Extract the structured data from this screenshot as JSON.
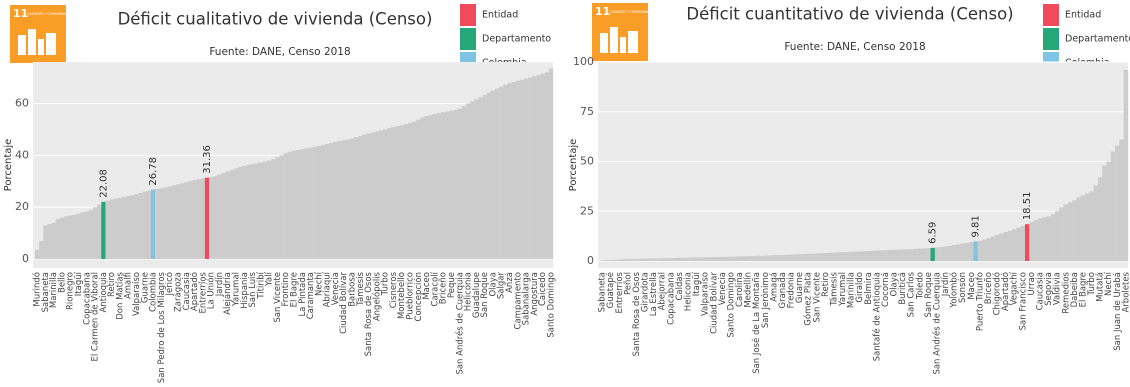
{
  "chart_data": [
    {
      "type": "bar",
      "title": "Déficit cualitativo de vivienda (Censo)",
      "subtitle": "Fuente: DANE, Censo 2018",
      "y_label": "Porcentaje",
      "logo": {
        "number": "11",
        "text": "CIUDADES Y COMUNIDADES SOSTENIBLES",
        "color": "#f99d26"
      },
      "color": "#cccccc",
      "background": "#ebebeb",
      "grid": true,
      "ylim": [
        0,
        76
      ],
      "yticks": [
        0,
        20,
        40,
        60
      ],
      "legend": [
        {
          "name": "Entidad",
          "color": "#ef4b5c",
          "index": 41
        },
        {
          "name": "Departamento",
          "color": "#26a77a",
          "index": 16
        },
        {
          "name": "Colombia",
          "color": "#7fc4e2",
          "index": 28
        }
      ],
      "categories": [
        "Murindó",
        null,
        "Sabaneta",
        null,
        "Marinilla",
        null,
        "Bello",
        null,
        "Rionegro",
        null,
        "Itagüí",
        null,
        "Copacabana",
        null,
        "El Carmen de Viboral",
        null,
        "Antioquia",
        null,
        "Retiro",
        null,
        "Don Matías",
        null,
        "Amalfi",
        null,
        "Valparaíso",
        null,
        "Guarne",
        null,
        "Colombia",
        null,
        "San Pedro de Los Milagros",
        null,
        "Jericó",
        null,
        "Zaragoza",
        null,
        "Caucasia",
        null,
        "Apartadó",
        null,
        "Entrerríos",
        null,
        "La Unión",
        null,
        "Jardín",
        null,
        "Alejandría",
        null,
        "Yarumal",
        null,
        "Hispania",
        null,
        "San Luis",
        null,
        "Titiribí",
        null,
        "Yalí",
        null,
        "San Vicente",
        null,
        "Frontino",
        null,
        "El Bagre",
        null,
        "La Pintada",
        null,
        "Caramanta",
        null,
        "Nechí",
        null,
        "Abriaquí",
        null,
        "Venecia",
        null,
        "Ciudad Bolívar",
        null,
        "Barbosa",
        null,
        "Támesis",
        null,
        "Santa Rosa de Osos",
        null,
        "Angelópolis",
        null,
        "Turbo",
        null,
        "Cisneros",
        null,
        "Montebello",
        null,
        "Pueblorrico",
        null,
        "Concepción",
        null,
        "Maceo",
        null,
        "Caracolí",
        null,
        "Briceño",
        null,
        "Peque",
        null,
        "San Andrés de Cuerquia",
        null,
        "Heliconia",
        null,
        "Guadalupe",
        null,
        "San Roque",
        null,
        "Olaya",
        null,
        "Salgar",
        null,
        "Anzá",
        null,
        "Campamento",
        null,
        "Sabanalarga",
        null,
        "Angostura",
        null,
        "Caicedo",
        null,
        "Santo Domingo"
      ],
      "values": [
        3.5,
        7,
        13,
        13.5,
        14,
        15.5,
        16,
        16.5,
        16.8,
        17,
        17.5,
        18,
        18.3,
        19,
        20,
        21,
        22.08,
        22.5,
        23,
        23.3,
        23.7,
        24,
        24.3,
        24.6,
        25,
        25.5,
        26,
        26.4,
        26.78,
        27,
        27.3,
        27.6,
        28,
        28.4,
        28.8,
        29.2,
        29.6,
        30,
        30.4,
        30.8,
        31.1,
        31.36,
        31.6,
        32,
        32.6,
        33.2,
        33.8,
        34.4,
        35,
        35.5,
        36,
        36.3,
        36.6,
        36.9,
        37.2,
        37.6,
        38,
        38.6,
        39.3,
        40,
        40.8,
        41.4,
        41.8,
        42.1,
        42.4,
        42.7,
        43,
        43.3,
        43.6,
        44,
        44.4,
        44.8,
        45.2,
        45.5,
        45.8,
        46.1,
        46.5,
        47,
        47.5,
        48,
        48.4,
        48.8,
        49.2,
        49.6,
        50,
        50.5,
        51,
        51.3,
        51.6,
        52,
        52.5,
        53,
        53.8,
        54.6,
        55.2,
        55.6,
        56,
        56.3,
        56.6,
        56.9,
        57.2,
        57.5,
        58,
        59,
        60,
        60.8,
        61.6,
        62.4,
        63.3,
        64.2,
        65,
        65.8,
        66.5,
        67.2,
        67.8,
        68.3,
        68.8,
        69.2,
        69.6,
        70,
        70.5,
        71,
        71.5,
        72,
        73.5
      ]
    },
    {
      "type": "bar",
      "title": "Déficit cuantitativo de vivienda (Censo)",
      "subtitle": "Fuente: DANE, Censo 2018",
      "y_label": "Porcentaje",
      "logo": {
        "number": "11",
        "text": "CIUDADES Y COMUNIDADES SOSTENIBLES",
        "color": "#f99d26"
      },
      "color": "#cccccc",
      "background": "#ebebeb",
      "grid": true,
      "ylim": [
        0,
        100
      ],
      "yticks": [
        0,
        25,
        50,
        75,
        100
      ],
      "legend": [
        {
          "name": "Entidad",
          "color": "#ef4b5c",
          "index": 99
        },
        {
          "name": "Departamento",
          "color": "#26a77a",
          "index": 77
        },
        {
          "name": "Colombia",
          "color": "#7fc4e2",
          "index": 87
        }
      ],
      "categories": [
        "Sabaneta",
        null,
        "Guatapé",
        null,
        "Entrerríos",
        null,
        "Peñol",
        null,
        "Santa Rosa de Osos",
        null,
        "Girardota",
        null,
        "La Estrella",
        null,
        "Abejorral",
        null,
        "Copacabana",
        null,
        "Caldas",
        null,
        "Heliconia",
        null,
        "Itagüí",
        null,
        "Valparaíso",
        null,
        "Ciudad Bolívar",
        null,
        "Venecia",
        null,
        "Santo Domingo",
        null,
        "Carolina",
        null,
        "Medellín",
        null,
        "San José de La Montaña",
        null,
        "San Jerónimo",
        null,
        "Amagá",
        null,
        "Granada",
        null,
        "Fredonia",
        null,
        "Guarne",
        null,
        "Gómez Plata",
        null,
        "San Vicente",
        null,
        "Retiro",
        null,
        "Támesis",
        null,
        "Yarumal",
        null,
        "Marinilla",
        null,
        "Giraldo",
        null,
        "Belmira",
        null,
        "Santafé de Antioquia",
        null,
        "Cocorná",
        null,
        "Olaya",
        null,
        "Buriticá",
        null,
        "San Carlos",
        null,
        "Toledo",
        null,
        "San Roque",
        null,
        "San Andrés de Cuerquia",
        null,
        "Jardín",
        null,
        "Yolombó",
        null,
        "Sonsón",
        null,
        "Maceo",
        null,
        "Puerto Triunfo",
        null,
        "Briceño",
        null,
        "Chigorodó",
        null,
        "Apartadó",
        null,
        "Vegachí",
        null,
        "San Francisco",
        null,
        "Urrao",
        null,
        "Caucasia",
        null,
        "Segovia",
        null,
        "Valdivia",
        null,
        "Remedios",
        null,
        "Dabeiba",
        null,
        "El Bagre",
        null,
        "Turbo",
        null,
        "Mutatá",
        null,
        "Nechí",
        null,
        "San Juan de Urabá",
        null,
        "Arboletes"
      ],
      "values": [
        0.3,
        0.4,
        0.5,
        0.6,
        0.7,
        0.8,
        0.9,
        1.0,
        1.0,
        1.1,
        1.2,
        1.2,
        1.3,
        1.3,
        1.4,
        1.4,
        1.5,
        1.5,
        1.6,
        1.6,
        1.7,
        1.7,
        1.8,
        1.8,
        1.9,
        1.9,
        2.0,
        2.0,
        2.1,
        2.1,
        2.2,
        2.2,
        2.3,
        2.4,
        2.4,
        2.5,
        2.6,
        2.6,
        2.7,
        2.8,
        2.9,
        3.0,
        3.0,
        3.1,
        3.2,
        3.3,
        3.4,
        3.5,
        3.6,
        3.7,
        3.8,
        3.9,
        4.0,
        4.1,
        4.2,
        4.3,
        4.4,
        4.5,
        4.6,
        4.7,
        4.8,
        4.9,
        5.0,
        5.1,
        5.2,
        5.3,
        5.4,
        5.5,
        5.6,
        5.7,
        5.8,
        5.9,
        6.0,
        6.1,
        6.2,
        6.4,
        6.5,
        6.59,
        6.8,
        7.0,
        7.3,
        7.6,
        8.0,
        8.4,
        8.8,
        9.1,
        9.5,
        9.81,
        10.2,
        10.8,
        11.5,
        12.3,
        13.0,
        13.8,
        14.5,
        15.2,
        16.0,
        16.8,
        17.6,
        18.51,
        19.5,
        20.5,
        21.5,
        22.0,
        22.5,
        23.5,
        25,
        27,
        28.5,
        29.5,
        30.5,
        32,
        33,
        34,
        35,
        38,
        42,
        48,
        50,
        55,
        58,
        61,
        96
      ]
    }
  ]
}
